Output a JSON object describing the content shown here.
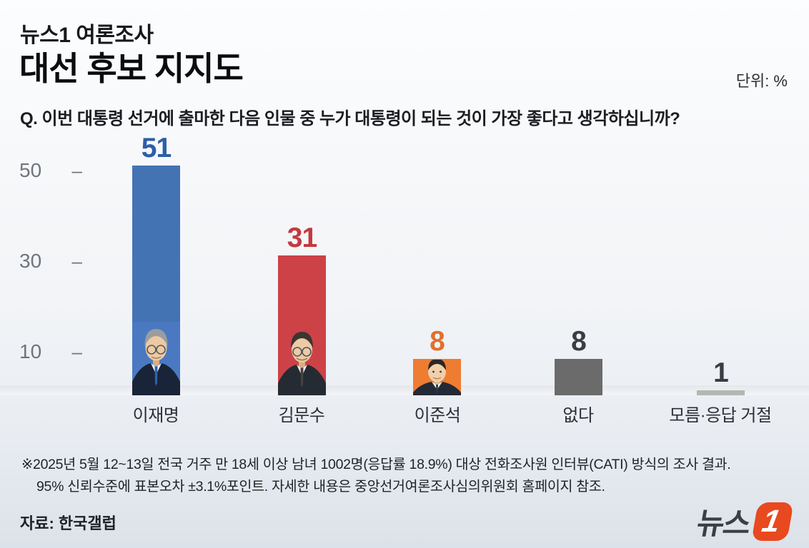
{
  "header": {
    "kicker": "뉴스1 여론조사",
    "title": "대선 후보 지지도",
    "unit_label": "단위: %",
    "question": "Q. 이번 대통령 선거에 출마한 다음 인물 중 누가 대통령이 되는 것이 가장 좋다고 생각하십니까?"
  },
  "chart_data": {
    "type": "bar",
    "title": "대선 후보 지지도",
    "unit": "%",
    "categories": [
      "이재명",
      "김문수",
      "이준석",
      "없다",
      "모름·응답 거절"
    ],
    "values": [
      51,
      31,
      8,
      8,
      1
    ],
    "ylim": [
      0,
      55
    ],
    "yticks": [
      50,
      30,
      10
    ],
    "grid": false,
    "legend": null,
    "bar_colors": [
      "#4473b4",
      "#cc4247",
      "#ee7d31",
      "#6b6b6b",
      "#b4b7b2"
    ],
    "value_colors": [
      "#2c5ea8",
      "#c23a40",
      "#e2702a",
      "#3a3e44",
      "#3a3e44"
    ],
    "photo_bars": [
      0,
      1,
      2
    ]
  },
  "footnote": {
    "line1": "※2025년 5월 12~13일 전국 거주 만 18세 이상 남녀 1002명(응답률 18.9%) 대상 전화조사원 인터뷰(CATI) 방식의 조사 결과.",
    "line2": "95% 신뢰수준에 표본오차 ±3.1%포인트. 자세한 내용은 중앙선거여론조사심의위원회 홈페이지 참조."
  },
  "source": {
    "label": "자료: 한국갤럽"
  },
  "logo": {
    "text": "뉴스",
    "digit": "1",
    "accent_color": "#e8491f"
  }
}
